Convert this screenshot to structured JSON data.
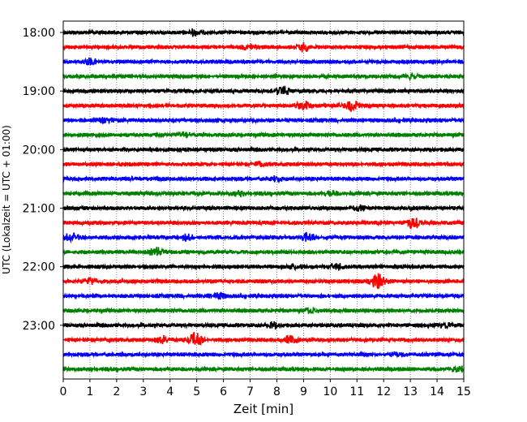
{
  "chart_data": {
    "type": "line",
    "title": "",
    "xlabel": "Zeit  [min]",
    "ylabel": "UTC (Lokalzeit = UTC + 01:00)",
    "xlim": [
      0,
      15
    ],
    "x_ticks": [
      "0",
      "1",
      "2",
      "3",
      "4",
      "5",
      "6",
      "7",
      "8",
      "9",
      "10",
      "11",
      "12",
      "13",
      "14",
      "15"
    ],
    "y_tick_labels": [
      "18:00",
      "19:00",
      "20:00",
      "21:00",
      "22:00",
      "23:00"
    ],
    "grid": "vertical dotted at each minute",
    "colors": [
      "#000000",
      "#ff0000",
      "#0000ff",
      "#008000"
    ],
    "rows": [
      {
        "time": "18:00",
        "color": "#000000",
        "events": [
          [
            4.9,
            0.5
          ]
        ]
      },
      {
        "time": "18:15",
        "color": "#ff0000",
        "events": [
          [
            9.0,
            0.7
          ],
          [
            7.0,
            0.5
          ]
        ]
      },
      {
        "time": "18:30",
        "color": "#0000ff",
        "events": [
          [
            1.0,
            0.5
          ]
        ]
      },
      {
        "time": "18:45",
        "color": "#008000",
        "events": [
          [
            13.0,
            0.4
          ]
        ]
      },
      {
        "time": "19:00",
        "color": "#000000",
        "events": [
          [
            8.2,
            0.8
          ]
        ]
      },
      {
        "time": "19:15",
        "color": "#ff0000",
        "events": [
          [
            10.8,
            1.0
          ],
          [
            9.0,
            0.7
          ]
        ]
      },
      {
        "time": "19:30",
        "color": "#0000ff",
        "events": [
          [
            1.6,
            0.4
          ]
        ]
      },
      {
        "time": "19:45",
        "color": "#008000",
        "events": [
          [
            4.5,
            0.4
          ]
        ]
      },
      {
        "time": "20:00",
        "color": "#000000",
        "events": []
      },
      {
        "time": "20:15",
        "color": "#ff0000",
        "events": [
          [
            7.3,
            0.3
          ]
        ]
      },
      {
        "time": "20:30",
        "color": "#0000ff",
        "events": [
          [
            8.0,
            0.4
          ]
        ]
      },
      {
        "time": "20:45",
        "color": "#008000",
        "events": [
          [
            6.6,
            0.4
          ],
          [
            10.0,
            0.4
          ]
        ]
      },
      {
        "time": "21:00",
        "color": "#000000",
        "events": [
          [
            11.1,
            0.4
          ]
        ]
      },
      {
        "time": "21:15",
        "color": "#ff0000",
        "events": [
          [
            13.1,
            1.0
          ]
        ]
      },
      {
        "time": "21:30",
        "color": "#0000ff",
        "events": [
          [
            0.3,
            0.7
          ],
          [
            9.2,
            0.8
          ],
          [
            4.6,
            0.5
          ]
        ]
      },
      {
        "time": "21:45",
        "color": "#008000",
        "events": [
          [
            3.5,
            0.7
          ]
        ]
      },
      {
        "time": "22:00",
        "color": "#000000",
        "events": [
          [
            10.2,
            0.5
          ],
          [
            8.7,
            0.4
          ]
        ]
      },
      {
        "time": "22:15",
        "color": "#ff0000",
        "events": [
          [
            11.8,
            1.5
          ],
          [
            1.0,
            0.5
          ]
        ]
      },
      {
        "time": "22:30",
        "color": "#0000ff",
        "events": [
          [
            5.8,
            0.5
          ]
        ]
      },
      {
        "time": "22:45",
        "color": "#008000",
        "events": [
          [
            9.3,
            0.4
          ]
        ]
      },
      {
        "time": "23:00",
        "color": "#000000",
        "events": [
          [
            7.9,
            0.5
          ],
          [
            14.3,
            0.4
          ]
        ]
      },
      {
        "time": "23:15",
        "color": "#ff0000",
        "events": [
          [
            4.9,
            1.4
          ],
          [
            3.7,
            0.6
          ],
          [
            8.5,
            0.7
          ]
        ]
      },
      {
        "time": "23:30",
        "color": "#0000ff",
        "events": [
          [
            12.5,
            0.3
          ]
        ]
      },
      {
        "time": "23:45",
        "color": "#008000",
        "events": [
          [
            14.8,
            0.5
          ]
        ]
      }
    ]
  }
}
